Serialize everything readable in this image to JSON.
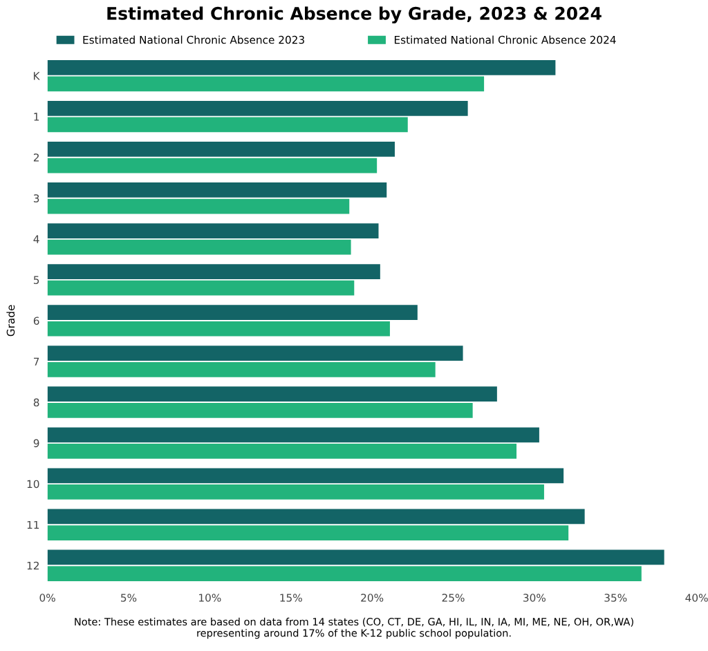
{
  "chart_data": {
    "type": "bar",
    "orientation": "horizontal",
    "title": "Estimated Chronic Absence by Grade, 2023 & 2024",
    "ylabel": "Grade",
    "categories": [
      "K",
      "1",
      "2",
      "3",
      "4",
      "5",
      "6",
      "7",
      "8",
      "9",
      "10",
      "11",
      "12"
    ],
    "series": [
      {
        "name": "Estimated National Chronic Absence 2023",
        "color": "#136466",
        "values": [
          31.3,
          25.9,
          21.4,
          20.9,
          20.4,
          20.5,
          22.8,
          25.6,
          27.7,
          30.3,
          31.8,
          33.1,
          38.0
        ]
      },
      {
        "name": "Estimated National Chronic Absence 2024",
        "color": "#22b37c",
        "values": [
          26.9,
          22.2,
          20.3,
          18.6,
          18.7,
          18.9,
          21.1,
          23.9,
          26.2,
          28.9,
          30.6,
          32.1,
          36.6
        ]
      }
    ],
    "xlim": [
      0,
      40
    ],
    "xticks": [
      {
        "value": 0,
        "label": "0%"
      },
      {
        "value": 5,
        "label": "5%"
      },
      {
        "value": 10,
        "label": "10%"
      },
      {
        "value": 15,
        "label": "15%"
      },
      {
        "value": 20,
        "label": "20%"
      },
      {
        "value": 25,
        "label": "25%"
      },
      {
        "value": 30,
        "label": "30%"
      },
      {
        "value": 35,
        "label": "35%"
      },
      {
        "value": 40,
        "label": "40%"
      }
    ],
    "grid": false,
    "legend": "top",
    "annotations": [
      "Note: These estimates are based on data from 14 states (CO, CT, DE, GA, HI, IL, IN, IA, MI, ME, NE, OH, OR,WA)\nrepresenting around 17% of the K-12 public school population."
    ]
  }
}
